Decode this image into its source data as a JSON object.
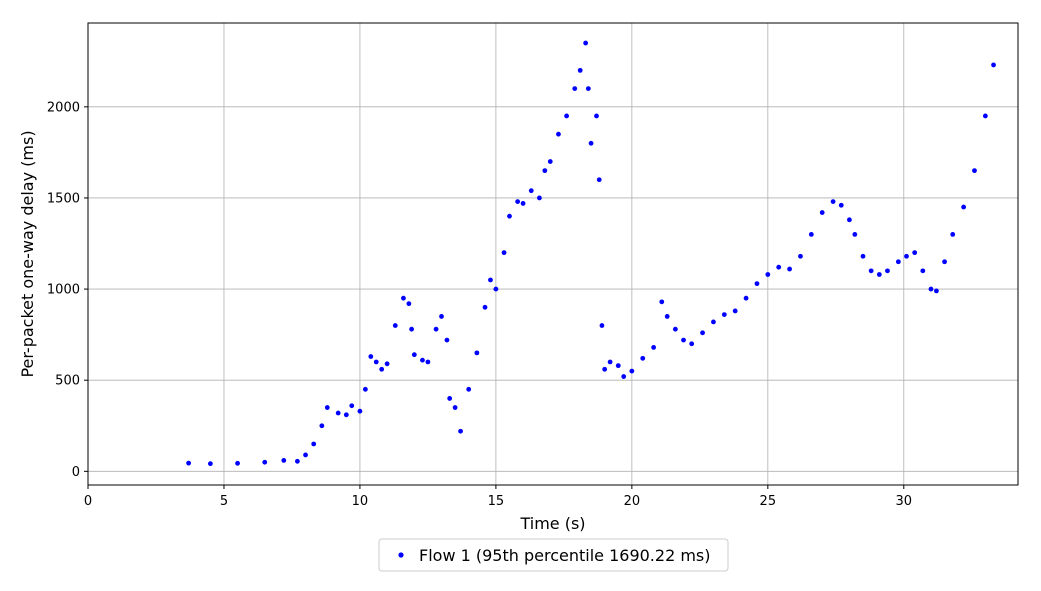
{
  "chart_data": {
    "type": "scatter",
    "xlabel": "Time (s)",
    "ylabel": "Per-packet one-way delay (ms)",
    "xlim": [
      0,
      34.2
    ],
    "ylim": [
      -75,
      2460
    ],
    "xticks": [
      0,
      5,
      10,
      15,
      20,
      25,
      30
    ],
    "yticks": [
      0,
      500,
      1000,
      1500,
      2000
    ],
    "grid": true,
    "legend_position": "bottom-center",
    "series": [
      {
        "name": "Flow 1 (95th percentile 1690.22 ms)",
        "color": "#0000ff",
        "x": [
          3.7,
          4.5,
          5.5,
          6.5,
          7.2,
          7.7,
          8.0,
          8.3,
          8.6,
          8.8,
          9.2,
          9.5,
          9.7,
          10.0,
          10.2,
          10.4,
          10.6,
          10.8,
          11.0,
          11.3,
          11.6,
          11.8,
          11.9,
          12.0,
          12.3,
          12.5,
          12.8,
          13.0,
          13.2,
          13.3,
          13.5,
          13.7,
          14.0,
          14.3,
          14.6,
          14.8,
          15.0,
          15.3,
          15.5,
          15.8,
          16.0,
          16.3,
          16.6,
          16.8,
          17.0,
          17.3,
          17.6,
          17.9,
          18.1,
          18.3,
          18.4,
          18.5,
          18.7,
          18.8,
          18.9,
          19.0,
          19.2,
          19.5,
          19.7,
          20.0,
          20.4,
          20.8,
          21.1,
          21.3,
          21.6,
          21.9,
          22.2,
          22.6,
          23.0,
          23.4,
          23.8,
          24.2,
          24.6,
          25.0,
          25.4,
          25.8,
          26.2,
          26.6,
          27.0,
          27.4,
          27.7,
          28.0,
          28.2,
          28.5,
          28.8,
          29.1,
          29.4,
          29.8,
          30.1,
          30.4,
          30.7,
          31.0,
          31.2,
          31.5,
          31.8,
          32.2,
          32.6,
          33.0,
          33.3
        ],
        "y": [
          45,
          42,
          44,
          50,
          60,
          55,
          90,
          150,
          250,
          350,
          320,
          310,
          360,
          330,
          450,
          630,
          600,
          560,
          590,
          800,
          950,
          920,
          780,
          640,
          610,
          600,
          780,
          850,
          720,
          400,
          350,
          220,
          450,
          650,
          900,
          1050,
          1000,
          1200,
          1400,
          1480,
          1470,
          1540,
          1500,
          1650,
          1700,
          1850,
          1950,
          2100,
          2200,
          2350,
          2100,
          1800,
          1950,
          1600,
          800,
          560,
          600,
          580,
          520,
          550,
          620,
          680,
          930,
          850,
          780,
          720,
          700,
          760,
          820,
          860,
          880,
          950,
          1030,
          1080,
          1120,
          1110,
          1180,
          1300,
          1420,
          1480,
          1460,
          1380,
          1300,
          1180,
          1100,
          1080,
          1100,
          1150,
          1180,
          1200,
          1100,
          1000,
          990,
          1150,
          1300,
          1450,
          1650,
          1950,
          2230
        ]
      }
    ]
  }
}
